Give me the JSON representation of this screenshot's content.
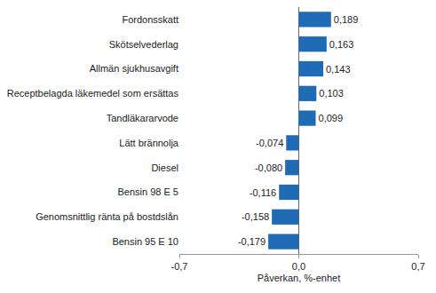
{
  "chart_data": {
    "type": "bar",
    "orientation": "horizontal",
    "x_label": "Påverkan, %-enhet",
    "categories": [
      "Fordonsskatt",
      "Skötselvederlag",
      "Allmän sjukhusavgift",
      "Receptbelagda läkemedel som ersättas",
      "Tandläkararvode",
      "Lätt brännolja",
      "Diesel",
      "Bensin 98 E 5",
      "Genomsnittlig ränta på bostdslån",
      "Bensin 95 E 10"
    ],
    "values": [
      0.189,
      0.163,
      0.143,
      0.103,
      0.099,
      -0.074,
      -0.08,
      -0.116,
      -0.158,
      -0.179
    ],
    "value_labels": [
      "0,189",
      "0,163",
      "0,143",
      "0,103",
      "0,099",
      "-0,074",
      "-0,080",
      "-0,116",
      "-0,158",
      "-0,179"
    ],
    "data_labels": true,
    "color": "#1f6bb5",
    "xlim": [
      -0.7,
      0.7
    ],
    "xticks": [
      {
        "value": -0.7,
        "label": "-0,7"
      },
      {
        "value": 0,
        "label": "0,0"
      },
      {
        "value": 0.7,
        "label": "0,7"
      }
    ],
    "grid": true
  }
}
